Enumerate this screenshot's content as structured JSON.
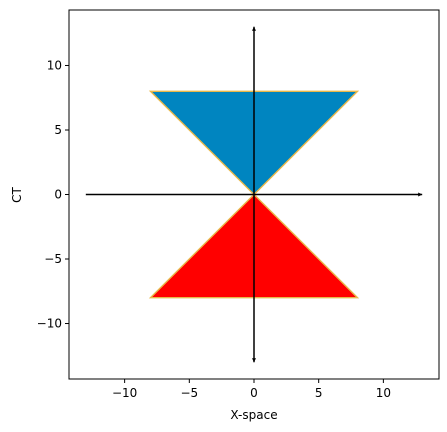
{
  "chart_data": {
    "type": "diagram",
    "title": "",
    "xlabel": "X-space",
    "ylabel": "CT",
    "xlim": [
      -14.3,
      14.3
    ],
    "ylim": [
      -14.3,
      14.3
    ],
    "x_ticks": [
      -10,
      -5,
      0,
      5,
      10
    ],
    "y_ticks": [
      -10,
      -5,
      0,
      5,
      10
    ],
    "x_tick_labels": [
      "−10",
      "−5",
      "0",
      "5",
      "10"
    ],
    "y_tick_labels": [
      "−10",
      "−5",
      "0",
      "5",
      "10"
    ],
    "shapes": [
      {
        "name": "future-cone",
        "fill": "#0085c0",
        "edge": "#e8b84a",
        "points": [
          [
            0,
            0
          ],
          [
            -8,
            8
          ],
          [
            8,
            8
          ]
        ]
      },
      {
        "name": "past-cone",
        "fill": "#ff0000",
        "edge": "#e8b84a",
        "points": [
          [
            0,
            0
          ],
          [
            -8,
            -8
          ],
          [
            8,
            -8
          ]
        ]
      }
    ],
    "arrows": [
      {
        "name": "x-axis-arrow",
        "from": [
          -13,
          0
        ],
        "to": [
          13,
          0
        ],
        "color": "#000000"
      },
      {
        "name": "ct-axis-arrow-up",
        "from": [
          0,
          0
        ],
        "to": [
          0,
          13
        ],
        "color": "#000000"
      },
      {
        "name": "ct-axis-line-down",
        "from": [
          0,
          0
        ],
        "to": [
          0,
          -13
        ],
        "color": "#000000"
      }
    ],
    "grid": false,
    "legend": "none"
  }
}
